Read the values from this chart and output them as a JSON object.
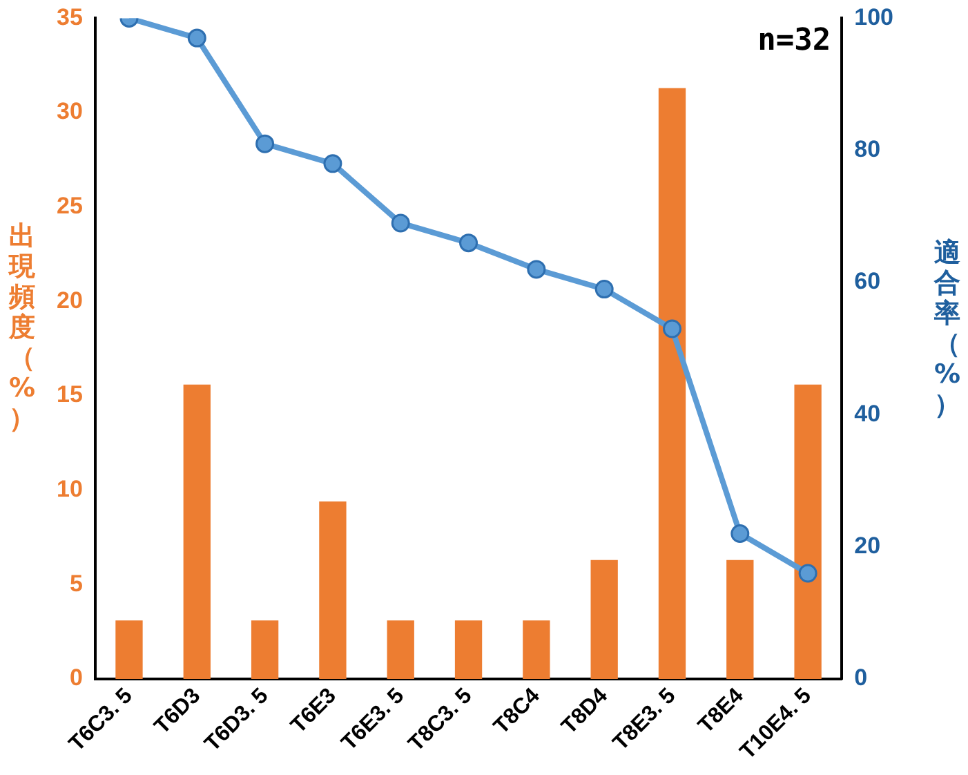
{
  "chart_data": {
    "type": "bar",
    "ylabel": "出現頻度（%）",
    "y2label": "適合率（%）",
    "annotations": [
      "n=32"
    ],
    "categories": [
      "T6C3. 5",
      "T6D3",
      "T6D3. 5",
      "T6E3",
      "T6E3. 5",
      "T8C3. 5",
      "T8C4",
      "T8D4",
      "T8E3. 5",
      "T8E4",
      "T10E4. 5"
    ],
    "series": [
      {
        "color": "#ed7d31",
        "values": [
          3.1,
          15.6,
          3.1,
          9.4,
          3.1,
          3.1,
          3.1,
          6.3,
          31.3,
          6.3,
          15.6
        ]
      },
      {
        "type": "line",
        "axis": "y2",
        "color": "#5b9bd5",
        "marker": "circle",
        "values": [
          100,
          97,
          81,
          78,
          69,
          66,
          62,
          59,
          53,
          22,
          16
        ]
      }
    ],
    "ylim": [
      0,
      35
    ],
    "yticks": [
      0,
      5,
      10,
      15,
      20,
      25,
      30,
      35
    ],
    "y2lim": [
      0,
      100
    ],
    "y2ticks": [
      0,
      20,
      40,
      60,
      80,
      100
    ],
    "grid": false,
    "legend": false
  }
}
